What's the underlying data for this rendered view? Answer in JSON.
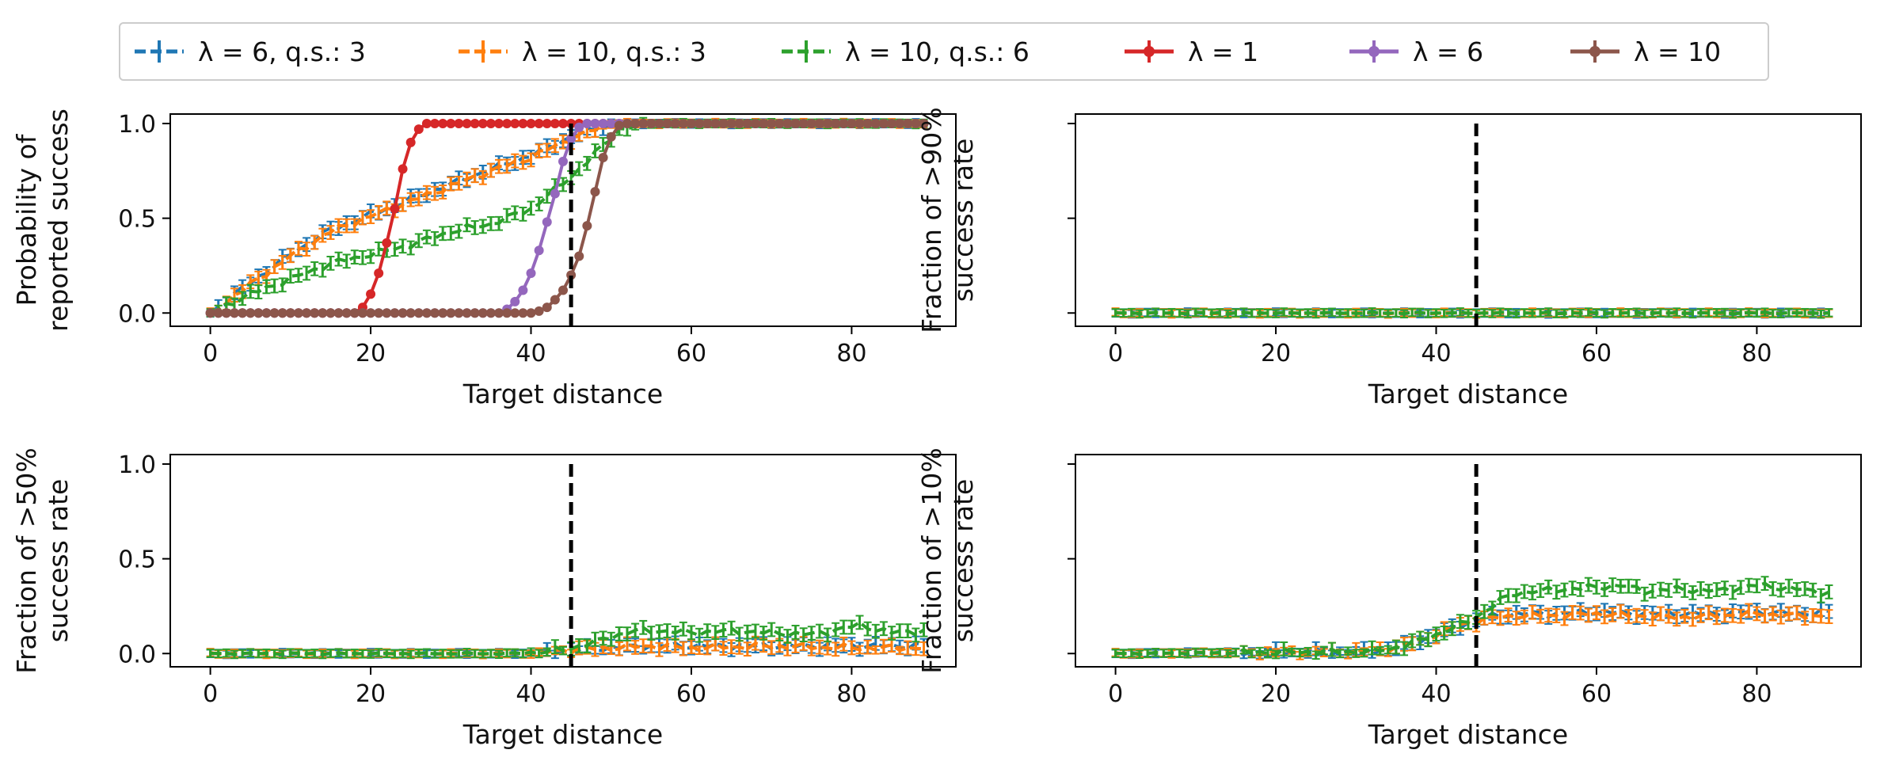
{
  "legend": [
    {
      "label": "λ = 6, q.s.: 3",
      "color": "#1f77b4",
      "style": "dashed"
    },
    {
      "label": "λ = 10, q.s.: 3",
      "color": "#ff7f0e",
      "style": "dashed"
    },
    {
      "label": "λ = 10, q.s.: 6",
      "color": "#2ca02c",
      "style": "dashed"
    },
    {
      "label": "λ = 1",
      "color": "#d62728",
      "style": "solid"
    },
    {
      "label": "λ = 6",
      "color": "#9467bd",
      "style": "solid"
    },
    {
      "label": "λ = 10",
      "color": "#8c564b",
      "style": "solid"
    }
  ],
  "chart_data": [
    {
      "type": "line",
      "panel": "top-left",
      "xlabel": "Target distance",
      "ylabel_lines": [
        "Probability of",
        "reported success"
      ],
      "xlim": [
        -5,
        93
      ],
      "ylim": [
        -0.07,
        1.05
      ],
      "xticks": [
        0,
        20,
        40,
        60,
        80
      ],
      "xtick_labels": [
        "0",
        "20",
        "40",
        "60",
        "80"
      ],
      "yticks": [
        0.0,
        0.5,
        1.0
      ],
      "ytick_labels": [
        "0.0",
        "0.5",
        "1.0"
      ],
      "vline_x": 45,
      "series": [
        {
          "name": "λ = 6, q.s.: 3",
          "color": "#1f77b4",
          "style": "dashed",
          "x": [
            0,
            5,
            10,
            15,
            20,
            25,
            30,
            35,
            40,
            45,
            50,
            55,
            60,
            70,
            80,
            89
          ],
          "y": [
            0.0,
            0.16,
            0.31,
            0.44,
            0.52,
            0.6,
            0.68,
            0.76,
            0.83,
            0.93,
            1.0,
            1.0,
            1.0,
            1.0,
            1.0,
            1.0
          ]
        },
        {
          "name": "λ = 10, q.s.: 3",
          "color": "#ff7f0e",
          "style": "dashed",
          "x": [
            0,
            5,
            10,
            15,
            20,
            25,
            30,
            35,
            40,
            45,
            50,
            55,
            60,
            70,
            80,
            89
          ],
          "y": [
            0.0,
            0.15,
            0.3,
            0.43,
            0.51,
            0.59,
            0.67,
            0.75,
            0.82,
            0.92,
            1.0,
            1.0,
            1.0,
            1.0,
            1.0,
            1.0
          ]
        },
        {
          "name": "λ = 10, q.s.: 6",
          "color": "#2ca02c",
          "style": "dashed",
          "x": [
            0,
            5,
            10,
            15,
            20,
            25,
            30,
            35,
            40,
            45,
            48,
            51,
            55,
            60,
            70,
            80,
            89
          ],
          "y": [
            0.0,
            0.1,
            0.18,
            0.26,
            0.31,
            0.36,
            0.43,
            0.47,
            0.55,
            0.72,
            0.84,
            0.97,
            1.0,
            1.0,
            1.0,
            1.0,
            1.0
          ]
        },
        {
          "name": "λ = 1",
          "color": "#d62728",
          "style": "solid",
          "x": [
            0,
            17,
            18,
            19,
            20,
            21,
            22,
            23,
            24,
            25,
            26,
            27,
            28,
            30,
            40,
            50,
            60,
            70,
            80,
            89
          ],
          "y": [
            0.0,
            0.0,
            0.0,
            0.03,
            0.1,
            0.21,
            0.37,
            0.55,
            0.76,
            0.9,
            0.97,
            1.0,
            1.0,
            1.0,
            1.0,
            1.0,
            1.0,
            1.0,
            1.0,
            1.0
          ]
        },
        {
          "name": "λ = 6",
          "color": "#9467bd",
          "style": "solid",
          "x": [
            0,
            34,
            36,
            37,
            38,
            39,
            40,
            41,
            42,
            43,
            44,
            45,
            46,
            47,
            48,
            49,
            50,
            60,
            70,
            80,
            89
          ],
          "y": [
            0.0,
            0.0,
            0.0,
            0.02,
            0.06,
            0.12,
            0.21,
            0.33,
            0.48,
            0.63,
            0.8,
            0.92,
            0.98,
            1.0,
            1.0,
            1.0,
            1.0,
            1.0,
            1.0,
            1.0,
            1.0
          ]
        },
        {
          "name": "λ = 10",
          "color": "#8c564b",
          "style": "solid",
          "x": [
            0,
            38,
            40,
            41,
            42,
            43,
            44,
            45,
            46,
            47,
            48,
            49,
            50,
            51,
            52,
            60,
            70,
            80,
            89
          ],
          "y": [
            0.0,
            0.0,
            0.0,
            0.01,
            0.03,
            0.07,
            0.12,
            0.2,
            0.3,
            0.46,
            0.64,
            0.82,
            0.93,
            0.99,
            1.0,
            1.0,
            1.0,
            1.0,
            1.0
          ]
        }
      ]
    },
    {
      "type": "line",
      "panel": "top-right",
      "xlabel": "Target distance",
      "ylabel_lines": [
        "Fraction of >90%",
        "success rate"
      ],
      "xlim": [
        -5,
        93
      ],
      "ylim": [
        -0.07,
        1.05
      ],
      "xticks": [
        0,
        20,
        40,
        60,
        80
      ],
      "xtick_labels": [
        "0",
        "20",
        "40",
        "60",
        "80"
      ],
      "yticks": [
        0.0,
        0.5,
        1.0
      ],
      "ytick_labels": [
        "",
        "",
        ""
      ],
      "vline_x": 45,
      "series": [
        {
          "name": "λ = 6, q.s.: 3",
          "color": "#1f77b4",
          "style": "dashed",
          "x": [
            0,
            89
          ],
          "y": [
            0.0,
            0.0
          ]
        },
        {
          "name": "λ = 10, q.s.: 3",
          "color": "#ff7f0e",
          "style": "dashed",
          "x": [
            0,
            89
          ],
          "y": [
            0.0,
            0.0
          ]
        },
        {
          "name": "λ = 10, q.s.: 6",
          "color": "#2ca02c",
          "style": "dashed",
          "x": [
            0,
            89
          ],
          "y": [
            0.0,
            0.0
          ]
        }
      ]
    },
    {
      "type": "line",
      "panel": "bottom-left",
      "xlabel": "Target distance",
      "ylabel_lines": [
        "Fraction of >50%",
        "success rate"
      ],
      "xlim": [
        -5,
        93
      ],
      "ylim": [
        -0.07,
        1.05
      ],
      "xticks": [
        0,
        20,
        40,
        60,
        80
      ],
      "xtick_labels": [
        "0",
        "20",
        "40",
        "60",
        "80"
      ],
      "yticks": [
        0.0,
        0.5,
        1.0
      ],
      "ytick_labels": [
        "0.0",
        "0.5",
        "1.0"
      ],
      "vline_x": 45,
      "series": [
        {
          "name": "λ = 6, q.s.: 3",
          "color": "#1f77b4",
          "style": "dashed",
          "x": [
            0,
            40,
            45,
            50,
            55,
            60,
            70,
            80,
            89
          ],
          "y": [
            0.0,
            0.0,
            0.02,
            0.03,
            0.04,
            0.04,
            0.04,
            0.04,
            0.04
          ]
        },
        {
          "name": "λ = 10, q.s.: 3",
          "color": "#ff7f0e",
          "style": "dashed",
          "x": [
            0,
            40,
            45,
            50,
            55,
            60,
            70,
            80,
            89
          ],
          "y": [
            0.0,
            0.0,
            0.02,
            0.03,
            0.04,
            0.03,
            0.04,
            0.03,
            0.03
          ]
        },
        {
          "name": "λ = 10, q.s.: 6",
          "color": "#2ca02c",
          "style": "dashed",
          "x": [
            0,
            38,
            42,
            45,
            48,
            50,
            53,
            56,
            60,
            65,
            70,
            75,
            81,
            85,
            89
          ],
          "y": [
            0.0,
            0.0,
            0.01,
            0.03,
            0.06,
            0.09,
            0.12,
            0.12,
            0.11,
            0.12,
            0.11,
            0.1,
            0.15,
            0.11,
            0.12
          ]
        }
      ]
    },
    {
      "type": "line",
      "panel": "bottom-right",
      "xlabel": "Target distance",
      "ylabel_lines": [
        "Fraction of >10%",
        "success rate"
      ],
      "xlim": [
        -5,
        93
      ],
      "ylim": [
        -0.07,
        1.05
      ],
      "xticks": [
        0,
        20,
        40,
        60,
        80
      ],
      "xtick_labels": [
        "0",
        "20",
        "40",
        "60",
        "80"
      ],
      "yticks": [
        0.0,
        0.5,
        1.0
      ],
      "ytick_labels": [
        "",
        "",
        ""
      ],
      "vline_x": 45,
      "series": [
        {
          "name": "λ = 6, q.s.: 3",
          "color": "#1f77b4",
          "style": "dashed",
          "x": [
            0,
            32,
            36,
            40,
            43,
            46,
            50,
            55,
            60,
            65,
            70,
            75,
            80,
            85,
            89
          ],
          "y": [
            0.0,
            0.01,
            0.04,
            0.1,
            0.15,
            0.19,
            0.21,
            0.21,
            0.22,
            0.21,
            0.21,
            0.21,
            0.22,
            0.21,
            0.22
          ]
        },
        {
          "name": "λ = 10, q.s.: 3",
          "color": "#ff7f0e",
          "style": "dashed",
          "x": [
            0,
            32,
            36,
            40,
            43,
            46,
            50,
            55,
            60,
            65,
            70,
            75,
            80,
            85,
            89
          ],
          "y": [
            0.0,
            0.01,
            0.04,
            0.1,
            0.15,
            0.18,
            0.2,
            0.2,
            0.21,
            0.2,
            0.19,
            0.2,
            0.21,
            0.2,
            0.2
          ]
        },
        {
          "name": "λ = 10, q.s.: 6",
          "color": "#2ca02c",
          "style": "dashed",
          "x": [
            0,
            32,
            36,
            40,
            43,
            46,
            48,
            50,
            53,
            56,
            60,
            63,
            66,
            70,
            75,
            80,
            85,
            89
          ],
          "y": [
            0.0,
            0.01,
            0.04,
            0.1,
            0.15,
            0.22,
            0.28,
            0.32,
            0.33,
            0.34,
            0.35,
            0.36,
            0.33,
            0.34,
            0.33,
            0.36,
            0.34,
            0.32
          ]
        }
      ]
    }
  ]
}
